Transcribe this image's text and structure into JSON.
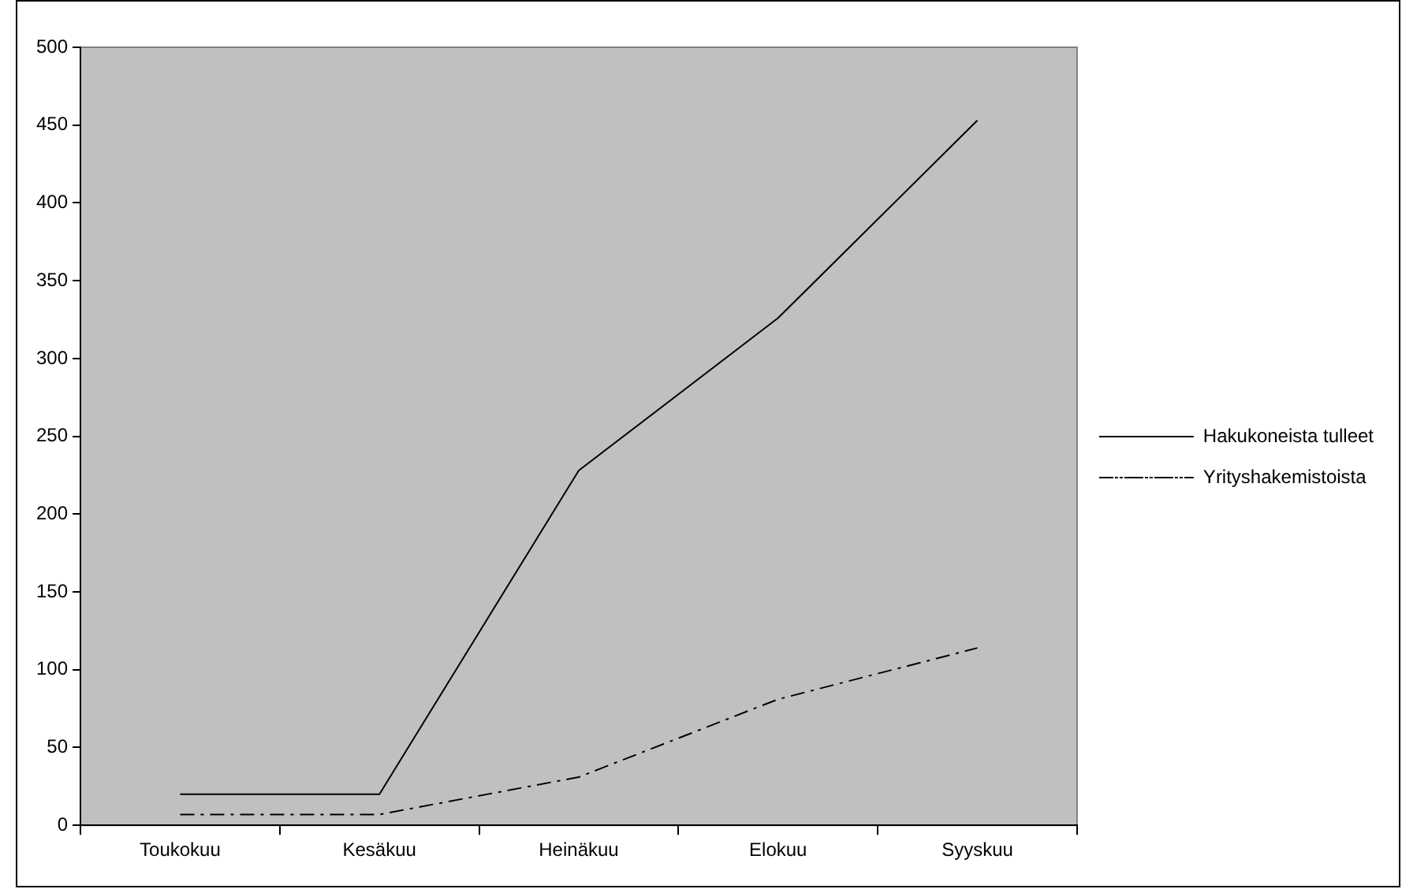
{
  "chart_data": {
    "type": "line",
    "categories": [
      "Toukokuu",
      "Kesäkuu",
      "Heinäkuu",
      "Elokuu",
      "Syyskuu"
    ],
    "series": [
      {
        "name": "Hakukoneista tulleet",
        "color": "#000000",
        "values": [
          20,
          20,
          228,
          326,
          453
        ],
        "line_style": "solid"
      },
      {
        "name": "Yrityshakemistoista",
        "color": "#000000",
        "values": [
          7,
          7,
          31,
          81,
          114
        ],
        "line_style": "dashed"
      }
    ],
    "ylim": [
      0,
      500
    ],
    "yticks": [
      0,
      50,
      100,
      150,
      200,
      250,
      300,
      350,
      400,
      450,
      500
    ],
    "grid": false,
    "legend": "right",
    "marker": "none"
  }
}
